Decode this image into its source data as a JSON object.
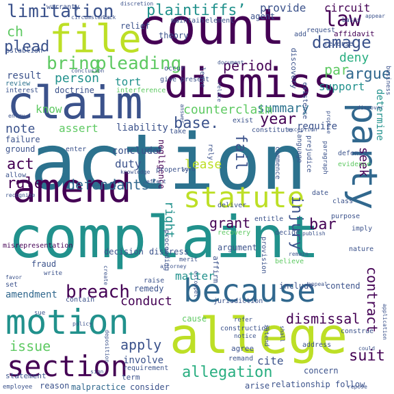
{
  "colors": {
    "dark_purple": "#440154",
    "indigo": "#3b528b",
    "blue": "#31688e",
    "teal_blue": "#2c728e",
    "teal": "#21918c",
    "green_teal": "#28ae80",
    "green": "#5ec962",
    "lime": "#addc30",
    "yellow": "#bddf26"
  },
  "words": {
    "action": "action",
    "complaint": "complaint",
    "count": "count",
    "dismiss": "dismiss",
    "claim": "claim",
    "amend": "amend",
    "allege": "allege",
    "motion": "motion",
    "file": "file",
    "because": "because",
    "statute": "statute",
    "party": "party",
    "section": "section",
    "limitation": "limitation",
    "plaintiffs": "plaintiffs’",
    "law": "law",
    "damage": "damage",
    "pleading": "pleading",
    "bring": "bring",
    "plead": "plead",
    "ch": "ch",
    "provide": "provide",
    "circuit": "circuit",
    "deny": "deny",
    "affidavit": "affidavit",
    "argue": "argue",
    "par": "par",
    "period": "period",
    "person": "person",
    "result": "result",
    "support": "support",
    "tort": "tort",
    "review": "review",
    "interest": "interest",
    "doctrine": "doctrine",
    "know": "know",
    "note": "note",
    "assert": "assert",
    "liability": "liability",
    "summary": "summary",
    "counterclaim": "counterclaim",
    "year": "year",
    "require": "require",
    "determine": "determine",
    "base": "base.",
    "seek": "seek",
    "act": "act",
    "rule": "rule",
    "fail": "fail",
    "duty": "duty",
    "conclude": "conclude",
    "lease": "lease",
    "defendants": "defendants’",
    "negligence": "negligence",
    "grant": "grant",
    "injury": "injury",
    "bar": "bar",
    "right": "right",
    "breach": "breach",
    "conduct": "conduct",
    "contract": "contract",
    "dismissal": "dismissal",
    "issue": "issue",
    "apply": "apply",
    "suit": "suit",
    "allegation": "allegation",
    "amendment": "amendment",
    "matter": "matter",
    "remedy": "remedy",
    "involve": "involve",
    "cite": "cite",
    "fraud": "fraud",
    "misrepresentation": "misrepresentation",
    "decision": "decision",
    "distress": "distress",
    "argument": "argument",
    "recovery": "recovery",
    "proceeding": "proceeding",
    "affirm": "affirm",
    "include": "include",
    "relationship": "relationship",
    "consider": "consider",
    "malpractice": "malpractice",
    "reason": "reason",
    "statement": "statement",
    "employee": "employee",
    "follow": "follow",
    "arise": "arise",
    "agree": "agree",
    "remand": "remand",
    "concern": "concern",
    "contend": "contend",
    "jurisdiction": "jurisdiction",
    "cause": "cause",
    "raise": "raise",
    "contain": "contain",
    "set": "set",
    "favor": "favor",
    "failure": "failure",
    "ground": "ground",
    "allow": "allow",
    "enter": "enter",
    "exist": "exist",
    "constitute": "constitute",
    "take": "take",
    "language": "language",
    "prejudice": "prejudice",
    "commence": "commence",
    "defense": "defense",
    "evidence": "evidence",
    "date": "date",
    "class": "class",
    "purpose": "purpose",
    "imply": "imply",
    "nature": "nature",
    "deliver": "deliver",
    "property": "property",
    "decide": "decide",
    "entitle": "entitle",
    "provision": "provision",
    "discovery": "discovery",
    "existence": "existence",
    "reverse": "reverse",
    "request": "request",
    "add": "add",
    "theory": "theory",
    "agent": "agent",
    "relief": "relief",
    "maintain": "maintain",
    "warranty": "warranty",
    "establish": "establish",
    "present": "present",
    "occur": "occur",
    "give": "give",
    "leave": "leave",
    "business": "business",
    "basis": "basis",
    "appear": "appear",
    "discretion": "discretion",
    "circumstance": "circumstance",
    "lack": "lack",
    "element": "element",
    "rely": "rely",
    "believe": "believe",
    "construction": "construction",
    "notice": "notice",
    "address": "address",
    "construe": "construe",
    "interference": "interference",
    "term": "term",
    "requirement": "requirement",
    "write": "write",
    "refer": "refer",
    "intend": "intend",
    "merit": "merit",
    "sue": "sue",
    "application": "application",
    "paragraph": "paragraph",
    "exception": "exception",
    "remain": "remain",
    "sign": "sign",
    "knowledge": "knowledge",
    "effect": "effect",
    "recognize": "recognize",
    "appeal": "appeal",
    "conclusion": "conclusion",
    "entry": "entry",
    "attorney": "attorney",
    "shall": "shall",
    "repose": "repose",
    "create": "create",
    "document": "document",
    "relate": "relate",
    "answer": "answer",
    "discover": "discover",
    "word": "word",
    "estoppel": "estoppel",
    "deposition": "deposition",
    "propose": "propose",
    "could": "could",
    "policy": "policy",
    "publish": "publish"
  }
}
